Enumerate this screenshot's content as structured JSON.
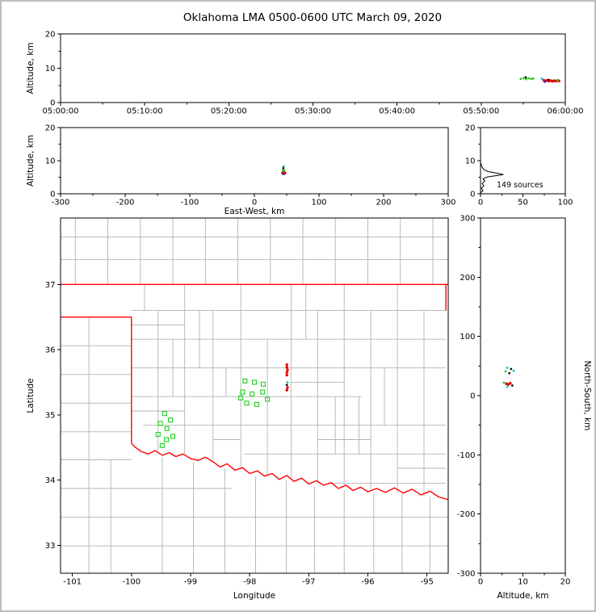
{
  "title": "Oklahoma LMA 0500-0600 UTC March 09, 2020",
  "palette": {
    "g": "#1fd11f",
    "r": "#e60000",
    "c": "#00c3c3",
    "k": "#111111",
    "b": "#3333e0",
    "state_border": "#ff0000",
    "county": "#b3b3b3",
    "axis": "#000000"
  },
  "chart_data": [
    {
      "id": "time_altitude",
      "type": "scatter",
      "ylabel": "Altitude, km",
      "xlim": [
        0,
        60
      ],
      "ylim": [
        0,
        20
      ],
      "xticks": [
        [
          0,
          "05:00:00"
        ],
        [
          10,
          "05:10:00"
        ],
        [
          20,
          "05:20:00"
        ],
        [
          30,
          "05:30:00"
        ],
        [
          40,
          "05:40:00"
        ],
        [
          50,
          "05:50:00"
        ],
        [
          60,
          "06:00:00"
        ]
      ],
      "yticks": [
        [
          0,
          "0"
        ],
        [
          10,
          "10"
        ],
        [
          20,
          "20"
        ]
      ],
      "xticks_minor": [
        5,
        15,
        25,
        35,
        45,
        55
      ],
      "yticks_minor": [
        5,
        15
      ],
      "points": [
        [
          54.7,
          6.9,
          "g"
        ],
        [
          55.05,
          7.1,
          "g"
        ],
        [
          55.35,
          6.8,
          "g"
        ],
        [
          55.65,
          7.05,
          "g"
        ],
        [
          55.95,
          6.9,
          "g"
        ],
        [
          56.2,
          7.0,
          "g"
        ],
        [
          55.3,
          7.35,
          "k"
        ],
        [
          57.2,
          6.95,
          "c"
        ],
        [
          57.45,
          6.5,
          "r"
        ],
        [
          57.65,
          6.3,
          "r"
        ],
        [
          57.85,
          6.45,
          "r"
        ],
        [
          58.05,
          6.25,
          "r"
        ],
        [
          58.25,
          6.4,
          "r"
        ],
        [
          58.45,
          6.2,
          "r"
        ],
        [
          58.65,
          6.35,
          "r"
        ],
        [
          58.85,
          6.25,
          "r"
        ],
        [
          59.05,
          6.4,
          "r"
        ],
        [
          59.25,
          6.3,
          "r"
        ],
        [
          57.55,
          6.05,
          "b"
        ],
        [
          58.0,
          6.6,
          "k"
        ],
        [
          59.1,
          6.55,
          "g"
        ]
      ]
    },
    {
      "id": "ew_altitude",
      "type": "scatter",
      "xlabel": "East-West, km",
      "ylabel": "Altitude, km",
      "xlim": [
        -300,
        300
      ],
      "ylim": [
        0,
        20
      ],
      "xticks": [
        [
          -300,
          "-300"
        ],
        [
          -200,
          "-200"
        ],
        [
          -100,
          "-100"
        ],
        [
          0,
          "0"
        ],
        [
          100,
          "100"
        ],
        [
          200,
          "200"
        ],
        [
          300,
          "300"
        ]
      ],
      "yticks": [
        [
          0,
          "0"
        ],
        [
          10,
          "10"
        ],
        [
          20,
          "20"
        ]
      ],
      "xticks_minor": [
        -250,
        -150,
        -50,
        50,
        150,
        250
      ],
      "yticks_minor": [
        5,
        15
      ],
      "points": [
        [
          45.5,
          8.3,
          "c"
        ],
        [
          44.8,
          7.7,
          "k"
        ],
        [
          44.0,
          7.05,
          "g"
        ],
        [
          46.3,
          7.0,
          "g"
        ],
        [
          43.6,
          6.3,
          "r"
        ],
        [
          44.4,
          6.2,
          "r"
        ],
        [
          45.2,
          6.3,
          "r"
        ],
        [
          46.0,
          6.2,
          "r"
        ],
        [
          46.8,
          6.3,
          "r"
        ],
        [
          47.4,
          6.25,
          "r"
        ],
        [
          45.0,
          5.95,
          "b"
        ]
      ]
    },
    {
      "id": "alt_histogram",
      "type": "line",
      "annotation": "149 sources",
      "xlim": [
        0,
        100
      ],
      "ylim": [
        0,
        20
      ],
      "xticks": [
        [
          0,
          "0"
        ],
        [
          50,
          "50"
        ],
        [
          100,
          "100"
        ]
      ],
      "yticks": [
        [
          0,
          "0"
        ],
        [
          10,
          "10"
        ],
        [
          20,
          "20"
        ]
      ],
      "xticks_minor": [
        25,
        75
      ],
      "yticks_minor": [
        5,
        15
      ],
      "profile": [
        [
          0,
          0.3
        ],
        [
          3,
          0.9
        ],
        [
          1,
          1.7
        ],
        [
          4,
          2.4
        ],
        [
          2,
          3.1
        ],
        [
          5,
          3.9
        ],
        [
          3,
          4.5
        ],
        [
          8,
          5.1
        ],
        [
          27,
          5.8
        ],
        [
          20,
          6.2
        ],
        [
          9,
          6.7
        ],
        [
          4,
          7.3
        ],
        [
          2,
          8.0
        ],
        [
          1,
          8.7
        ],
        [
          0,
          9.5
        ]
      ]
    },
    {
      "id": "plan_view",
      "type": "map-scatter",
      "xlabel": "Longitude",
      "ylabel": "Latitude",
      "xlim": [
        -101.2,
        -94.64
      ],
      "ylim": [
        32.57,
        38.02
      ],
      "xticks": [
        [
          -101,
          "-101"
        ],
        [
          -100,
          "-100"
        ],
        [
          -99,
          "-99"
        ],
        [
          -98,
          "-98"
        ],
        [
          -97,
          "-97"
        ],
        [
          -96,
          "-96"
        ],
        [
          -95,
          "-95"
        ]
      ],
      "yticks": [
        [
          33,
          "33"
        ],
        [
          34,
          "34"
        ],
        [
          35,
          "35"
        ],
        [
          36,
          "36"
        ],
        [
          37,
          "37"
        ]
      ],
      "xticks_minor": [],
      "yticks_minor": [],
      "squares": [
        [
          -98.08,
          35.52
        ],
        [
          -97.92,
          35.5
        ],
        [
          -97.77,
          35.47
        ],
        [
          -98.12,
          35.35
        ],
        [
          -97.96,
          35.32
        ],
        [
          -97.78,
          35.35
        ],
        [
          -98.05,
          35.18
        ],
        [
          -97.88,
          35.16
        ],
        [
          -98.15,
          35.26
        ],
        [
          -97.7,
          35.24
        ],
        [
          -99.44,
          35.02
        ],
        [
          -99.34,
          34.92
        ],
        [
          -99.51,
          34.87
        ],
        [
          -99.4,
          34.79
        ],
        [
          -99.55,
          34.7
        ],
        [
          -99.41,
          34.62
        ],
        [
          -99.3,
          34.67
        ],
        [
          -99.48,
          34.53
        ]
      ],
      "points": [
        [
          -97.37,
          35.77,
          "r"
        ],
        [
          -97.37,
          35.73,
          "r"
        ],
        [
          -97.36,
          35.69,
          "r"
        ],
        [
          -97.37,
          35.65,
          "r"
        ],
        [
          -97.37,
          35.61,
          "r"
        ],
        [
          -97.36,
          35.5,
          "c"
        ],
        [
          -97.37,
          35.46,
          "k"
        ],
        [
          -97.36,
          35.42,
          "r"
        ],
        [
          -97.37,
          35.38,
          "r"
        ]
      ],
      "state_border": [
        [
          [
            -101.2,
            37
          ],
          [
            -94.64,
            37
          ]
        ],
        [
          [
            -101.2,
            36.5
          ],
          [
            -100,
            36.5
          ]
        ],
        [
          [
            -100,
            36.5
          ],
          [
            -100,
            34.56
          ]
        ],
        [
          [
            -94.68,
            37
          ],
          [
            -94.68,
            36.6
          ]
        ],
        [
          [
            -100,
            34.56
          ],
          [
            -99.93,
            34.5
          ],
          [
            -99.84,
            34.44
          ],
          [
            -99.72,
            34.4
          ],
          [
            -99.6,
            34.45
          ],
          [
            -99.48,
            34.38
          ],
          [
            -99.36,
            34.42
          ],
          [
            -99.25,
            34.36
          ],
          [
            -99.13,
            34.4
          ],
          [
            -99.0,
            34.33
          ],
          [
            -98.87,
            34.3
          ],
          [
            -98.75,
            34.35
          ],
          [
            -98.62,
            34.28
          ],
          [
            -98.5,
            34.2
          ],
          [
            -98.38,
            34.25
          ],
          [
            -98.25,
            34.15
          ],
          [
            -98.12,
            34.19
          ],
          [
            -98.0,
            34.1
          ],
          [
            -97.87,
            34.14
          ],
          [
            -97.75,
            34.06
          ],
          [
            -97.62,
            34.1
          ],
          [
            -97.5,
            34.01
          ],
          [
            -97.37,
            34.07
          ],
          [
            -97.25,
            33.98
          ],
          [
            -97.12,
            34.03
          ],
          [
            -97.0,
            33.94
          ],
          [
            -96.87,
            33.99
          ],
          [
            -96.75,
            33.92
          ],
          [
            -96.62,
            33.96
          ],
          [
            -96.5,
            33.87
          ],
          [
            -96.37,
            33.92
          ],
          [
            -96.25,
            33.84
          ],
          [
            -96.12,
            33.89
          ],
          [
            -96.0,
            33.82
          ],
          [
            -95.85,
            33.87
          ],
          [
            -95.7,
            33.81
          ],
          [
            -95.55,
            33.88
          ],
          [
            -95.4,
            33.8
          ],
          [
            -95.25,
            33.86
          ],
          [
            -95.1,
            33.77
          ],
          [
            -94.95,
            33.83
          ],
          [
            -94.8,
            33.74
          ],
          [
            -94.64,
            33.7
          ]
        ]
      ],
      "county_lines": [
        [
          -100.95,
          37,
          -100.95,
          38.02
        ],
        [
          -100.4,
          37,
          -100.4,
          38.02
        ],
        [
          -99.85,
          37,
          -99.85,
          38.02
        ],
        [
          -99.3,
          37,
          -99.3,
          38.02
        ],
        [
          -98.75,
          37,
          -98.75,
          38.02
        ],
        [
          -98.2,
          37,
          -98.2,
          38.02
        ],
        [
          -97.65,
          37,
          -97.65,
          38.02
        ],
        [
          -97.1,
          37,
          -97.1,
          38.02
        ],
        [
          -96.55,
          37,
          -96.55,
          38.02
        ],
        [
          -96.0,
          37,
          -96.0,
          38.02
        ],
        [
          -95.45,
          37,
          -95.45,
          38.02
        ],
        [
          -94.9,
          37,
          -94.9,
          38.02
        ],
        [
          -101.2,
          37.38,
          -94.64,
          37.38
        ],
        [
          -101.2,
          37.73,
          -94.64,
          37.73
        ],
        [
          -101.2,
          36.06,
          -100,
          36.06
        ],
        [
          -101.2,
          35.62,
          -100,
          35.62
        ],
        [
          -101.2,
          35.18,
          -100,
          35.18
        ],
        [
          -101.2,
          34.74,
          -100,
          34.74
        ],
        [
          -101.2,
          34.31,
          -100,
          34.31
        ],
        [
          -100.72,
          32.57,
          -100.72,
          36.5
        ],
        [
          -100.35,
          32.57,
          -100.35,
          34.31
        ],
        [
          -101.2,
          33.87,
          -98.3,
          33.87
        ],
        [
          -101.2,
          33.43,
          -94.64,
          33.43
        ],
        [
          -101.2,
          32.99,
          -94.64,
          32.99
        ],
        [
          -99.48,
          32.57,
          -99.48,
          34.35
        ],
        [
          -98.95,
          32.57,
          -98.95,
          34.28
        ],
        [
          -98.42,
          32.57,
          -98.42,
          34.18
        ],
        [
          -97.9,
          32.57,
          -97.9,
          34.05
        ],
        [
          -97.38,
          32.57,
          -97.38,
          34.0
        ],
        [
          -96.9,
          32.57,
          -96.9,
          33.9
        ],
        [
          -96.4,
          32.57,
          -96.4,
          33.85
        ],
        [
          -95.9,
          32.57,
          -95.9,
          33.8
        ],
        [
          -95.42,
          32.57,
          -95.42,
          33.8
        ],
        [
          -94.95,
          32.57,
          -94.95,
          33.74
        ],
        [
          -100,
          36.6,
          -94.68,
          36.6
        ],
        [
          -100,
          36.16,
          -94.68,
          36.16
        ],
        [
          -100,
          35.72,
          -94.68,
          35.72
        ],
        [
          -100,
          35.28,
          -96.1,
          35.28
        ],
        [
          -99.8,
          34.84,
          -94.68,
          34.84
        ],
        [
          -98.1,
          34.4,
          -94.68,
          34.4
        ],
        [
          -96.6,
          33.95,
          -94.68,
          33.95
        ],
        [
          -99.55,
          34.45,
          -99.55,
          36.6
        ],
        [
          -99.1,
          34.4,
          -99.1,
          37
        ],
        [
          -98.62,
          34.3,
          -98.62,
          36.6
        ],
        [
          -98.15,
          34.18,
          -98.15,
          37
        ],
        [
          -97.7,
          34.08,
          -97.7,
          36.16
        ],
        [
          -97.3,
          34.05,
          -97.3,
          37
        ],
        [
          -96.85,
          33.95,
          -96.85,
          36.6
        ],
        [
          -96.4,
          33.9,
          -96.4,
          37
        ],
        [
          -95.95,
          33.85,
          -95.95,
          36.6
        ],
        [
          -95.5,
          33.8,
          -95.5,
          37
        ],
        [
          -95.05,
          33.75,
          -95.05,
          36.6
        ],
        [
          -98.4,
          35.28,
          -98.4,
          35.72
        ],
        [
          -96.55,
          34.4,
          -96.55,
          35.28
        ],
        [
          -99.3,
          35.28,
          -99.3,
          36.16
        ],
        [
          -95.72,
          34.84,
          -95.72,
          35.72
        ],
        [
          -97.05,
          36.16,
          -97.05,
          37
        ],
        [
          -98.85,
          35.72,
          -98.85,
          36.6
        ],
        [
          -96.15,
          34.4,
          -96.15,
          35.28
        ],
        [
          -100,
          36.38,
          -99.1,
          36.38
        ],
        [
          -97.3,
          35.5,
          -96.4,
          35.5
        ],
        [
          -96.85,
          34.62,
          -95.95,
          34.62
        ],
        [
          -98.62,
          34.62,
          -98.15,
          34.62
        ],
        [
          -95.5,
          34.18,
          -94.68,
          34.18
        ],
        [
          -100,
          35.06,
          -99.1,
          35.06
        ],
        [
          -99.78,
          36.6,
          -99.78,
          37
        ]
      ]
    },
    {
      "id": "ns_altitude",
      "type": "scatter",
      "xlabel": "Altitude, km",
      "ylabel": "North-South, km",
      "ylabel_side": "right",
      "xlim": [
        0,
        20
      ],
      "ylim": [
        -300,
        300
      ],
      "xticks": [
        [
          0,
          "0"
        ],
        [
          10,
          "10"
        ],
        [
          20,
          "20"
        ]
      ],
      "yticks": [
        [
          -300,
          "-300"
        ],
        [
          -200,
          "-200"
        ],
        [
          -100,
          "-100"
        ],
        [
          0,
          "0"
        ],
        [
          100,
          "100"
        ],
        [
          200,
          "200"
        ],
        [
          300,
          "300"
        ]
      ],
      "xticks_minor": [
        5,
        15
      ],
      "yticks_minor": [
        -250,
        -150,
        -50,
        50,
        150,
        250
      ],
      "points": [
        [
          6.3,
          47,
          "c"
        ],
        [
          7.2,
          45,
          "k"
        ],
        [
          7.8,
          42,
          "c"
        ],
        [
          5.9,
          41,
          "g"
        ],
        [
          6.8,
          38,
          "k"
        ],
        [
          5.5,
          22,
          "g"
        ],
        [
          6.1,
          20,
          "r"
        ],
        [
          6.6,
          19,
          "r"
        ],
        [
          7.0,
          21,
          "r"
        ],
        [
          7.5,
          17,
          "k"
        ],
        [
          6.3,
          15,
          "c"
        ]
      ]
    }
  ]
}
